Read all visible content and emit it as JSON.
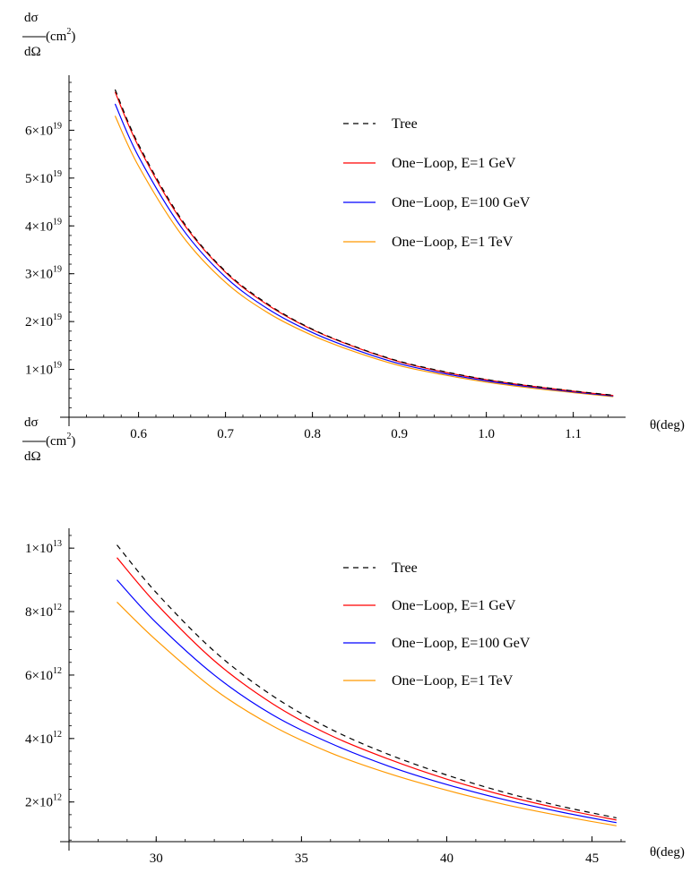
{
  "chart_data": [
    {
      "type": "line",
      "xlabel": "θ(deg)",
      "ylabel": {
        "num": "dσ",
        "unit": "(cm",
        "unit_exp": "2",
        "unit_close": ")",
        "den": "dΩ"
      },
      "xlim": [
        0.52,
        1.155
      ],
      "ylim": [
        0,
        7e+19
      ],
      "x_ticks": [
        {
          "value": 0.6,
          "label": "0.6"
        },
        {
          "value": 0.7,
          "label": "0.7"
        },
        {
          "value": 0.8,
          "label": "0.8"
        },
        {
          "value": 0.9,
          "label": "0.9"
        },
        {
          "value": 1.0,
          "label": "1.0"
        },
        {
          "value": 1.1,
          "label": "1.1"
        }
      ],
      "y_ticks": [
        {
          "value": 1e+19,
          "mant": "1",
          "exp": "19"
        },
        {
          "value": 2e+19,
          "mant": "2",
          "exp": "19"
        },
        {
          "value": 3e+19,
          "mant": "3",
          "exp": "19"
        },
        {
          "value": 4e+19,
          "mant": "4",
          "exp": "19"
        },
        {
          "value": 5e+19,
          "mant": "5",
          "exp": "19"
        },
        {
          "value": 6e+19,
          "mant": "6",
          "exp": "19"
        }
      ],
      "x": [
        0.573,
        0.6,
        0.65,
        0.7,
        0.75,
        0.8,
        0.85,
        0.9,
        0.95,
        1.0,
        1.05,
        1.1,
        1.146
      ],
      "series": [
        {
          "name": "Tree",
          "color": "#000000",
          "dash": true,
          "values": [
            6.85e+19,
            5.7e+19,
            4.12e+19,
            3.05e+19,
            2.35e+19,
            1.84e+19,
            1.47e+19,
            1.17e+19,
            9.6e+18,
            7.9e+18,
            6.6e+18,
            5.5e+18,
            4.6e+18
          ]
        },
        {
          "name": "One−Loop, E=1 GeV",
          "color": "#ff0000",
          "dash": false,
          "values": [
            6.8e+19,
            5.66e+19,
            4.09e+19,
            3.03e+19,
            2.33e+19,
            1.83e+19,
            1.46e+19,
            1.16e+19,
            9.5e+18,
            7.85e+18,
            6.55e+18,
            5.45e+18,
            4.55e+18
          ]
        },
        {
          "name": "One−Loop, E=100 GeV",
          "color": "#0000ff",
          "dash": false,
          "values": [
            6.55e+19,
            5.45e+19,
            3.95e+19,
            2.93e+19,
            2.25e+19,
            1.77e+19,
            1.41e+19,
            1.12e+19,
            9.2e+18,
            7.6e+18,
            6.35e+18,
            5.3e+18,
            4.45e+18
          ]
        },
        {
          "name": "One−Loop, E=1 TeV",
          "color": "#ff9900",
          "dash": false,
          "values": [
            6.3e+19,
            5.25e+19,
            3.8e+19,
            2.82e+19,
            2.17e+19,
            1.71e+19,
            1.36e+19,
            1.08e+19,
            8.9e+18,
            7.35e+18,
            6.15e+18,
            5.15e+18,
            4.3e+18
          ]
        }
      ]
    },
    {
      "type": "line",
      "xlabel": "θ(deg)",
      "ylabel": {
        "num": "dσ",
        "unit": "(cm",
        "unit_exp": "2",
        "unit_close": ")",
        "den": "dΩ"
      },
      "xlim": [
        27.0,
        46.0
      ],
      "ylim": [
        750000000000.0,
        10400000000000.0
      ],
      "x_ticks": [
        {
          "value": 30,
          "label": "30"
        },
        {
          "value": 35,
          "label": "35"
        },
        {
          "value": 40,
          "label": "40"
        },
        {
          "value": 45,
          "label": "45"
        }
      ],
      "y_ticks": [
        {
          "value": 2000000000000.0,
          "mant": "2",
          "exp": "12"
        },
        {
          "value": 4000000000000.0,
          "mant": "4",
          "exp": "12"
        },
        {
          "value": 6000000000000.0,
          "mant": "6",
          "exp": "12"
        },
        {
          "value": 8000000000000.0,
          "mant": "8",
          "exp": "12"
        },
        {
          "value": 10000000000000.0,
          "mant": "1",
          "exp": "13"
        }
      ],
      "x": [
        28.65,
        30,
        32,
        34,
        36,
        38,
        40,
        42,
        44,
        45.84
      ],
      "series": [
        {
          "name": "Tree",
          "color": "#000000",
          "dash": true,
          "values": [
            10100000000000.0,
            8600000000000.0,
            6750000000000.0,
            5350000000000.0,
            4300000000000.0,
            3500000000000.0,
            2850000000000.0,
            2300000000000.0,
            1850000000000.0,
            1500000000000.0
          ]
        },
        {
          "name": "One−Loop, E=1 GeV",
          "color": "#ff0000",
          "dash": false,
          "values": [
            9700000000000.0,
            8250000000000.0,
            6450000000000.0,
            5100000000000.0,
            4100000000000.0,
            3350000000000.0,
            2720000000000.0,
            2200000000000.0,
            1770000000000.0,
            1430000000000.0
          ]
        },
        {
          "name": "One−Loop, E=100 GeV",
          "color": "#0000ff",
          "dash": false,
          "values": [
            9000000000000.0,
            7650000000000.0,
            6000000000000.0,
            4750000000000.0,
            3850000000000.0,
            3130000000000.0,
            2550000000000.0,
            2070000000000.0,
            1670000000000.0,
            1350000000000.0
          ]
        },
        {
          "name": "One−Loop, E=1 TeV",
          "color": "#ff9900",
          "dash": false,
          "values": [
            8300000000000.0,
            7100000000000.0,
            5550000000000.0,
            4400000000000.0,
            3550000000000.0,
            2900000000000.0,
            2370000000000.0,
            1920000000000.0,
            1550000000000.0,
            1250000000000.0
          ]
        }
      ]
    }
  ]
}
